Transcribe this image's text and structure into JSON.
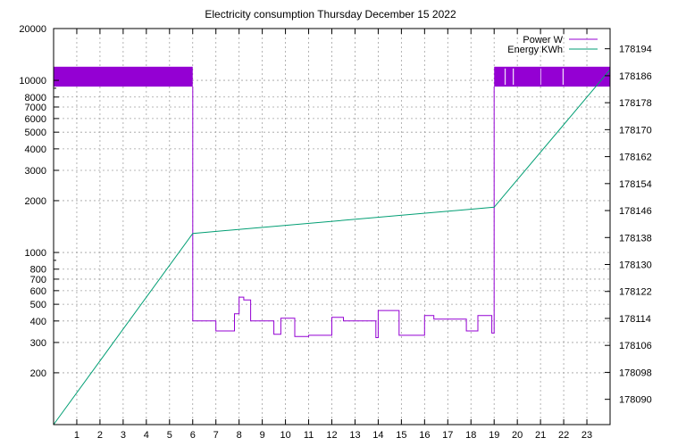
{
  "chart_data": {
    "type": "line",
    "title": "Electricity consumption Thursday December 15 2022",
    "xlabel": "",
    "x_ticks": [
      1,
      2,
      3,
      4,
      5,
      6,
      7,
      8,
      9,
      10,
      11,
      12,
      13,
      14,
      15,
      16,
      17,
      18,
      19,
      20,
      21,
      22,
      23
    ],
    "xlim": [
      0,
      24
    ],
    "y_left": {
      "label": "",
      "scale": "log",
      "ylim": [
        100,
        20000
      ],
      "major_ticks": [
        200,
        300,
        400,
        500,
        600,
        700,
        800,
        1000,
        2000,
        3000,
        4000,
        5000,
        6000,
        7000,
        8000,
        10000,
        20000
      ],
      "minor_ticks": [
        900,
        9000
      ]
    },
    "y_right": {
      "label": "",
      "scale": "linear",
      "ylim": [
        178082.5,
        178200
      ],
      "ticks": [
        178090,
        178098,
        178106,
        178114,
        178122,
        178130,
        178138,
        178146,
        178154,
        178162,
        178170,
        178178,
        178186,
        178194
      ]
    },
    "grid": true,
    "legend_position": "top-right",
    "series": [
      {
        "name": "Power W",
        "axis": "left",
        "color": "#9400d3",
        "style": "step",
        "band": {
          "low": 9200,
          "high": 12000,
          "segments": [
            [
              0,
              6
            ],
            [
              19,
              24
            ]
          ]
        },
        "x": [
          6.0,
          6.0,
          7.0,
          7.0,
          7.8,
          7.8,
          8.0,
          8.0,
          8.2,
          8.2,
          8.5,
          8.5,
          9.5,
          9.5,
          9.8,
          9.8,
          10.4,
          10.4,
          11.0,
          11.0,
          12.0,
          12.0,
          12.5,
          12.5,
          13.9,
          13.9,
          14.0,
          14.0,
          14.9,
          14.9,
          15.0,
          15.0,
          16.0,
          16.0,
          16.4,
          16.4,
          17.8,
          17.8,
          18.3,
          18.3,
          18.9,
          18.9,
          19.0,
          19.0
        ],
        "y": [
          9200,
          400,
          400,
          350,
          350,
          440,
          440,
          550,
          550,
          530,
          530,
          400,
          400,
          335,
          335,
          415,
          415,
          325,
          325,
          330,
          330,
          420,
          420,
          400,
          400,
          320,
          320,
          460,
          460,
          330,
          330,
          330,
          330,
          430,
          430,
          410,
          410,
          350,
          350,
          430,
          430,
          340,
          340,
          9200
        ]
      },
      {
        "name": "Energy KWh",
        "axis": "right",
        "color": "#009e73",
        "style": "line",
        "x": [
          0,
          6,
          19,
          24
        ],
        "y": [
          178082.5,
          178139.2,
          178147.0,
          178187.8
        ]
      }
    ]
  }
}
